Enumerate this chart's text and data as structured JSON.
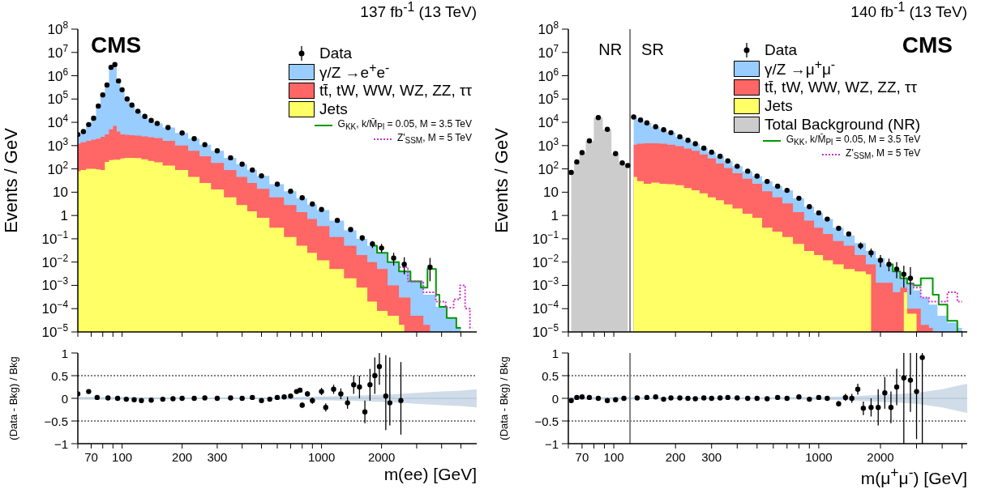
{
  "chart_data": [
    {
      "type": "area",
      "title": "137 fb$^{-1}$ (13 TeV)",
      "ylabel": "Events / GeV",
      "annotations": [
        "CMS"
      ],
      "log": "xy",
      "legend": "top right",
      "tick_labels": "y",
      "xlim": [
        60,
        6000
      ],
      "ylim": [
        1e-05,
        100000000
      ],
      "xticks": [
        {
          "value": 60,
          "label": null
        },
        70,
        {
          "value": 80,
          "label": null
        },
        {
          "value": 90,
          "label": null
        },
        100,
        200,
        300,
        {
          "value": 400,
          "label": null
        },
        {
          "value": 500,
          "label": null
        },
        {
          "value": 600,
          "label": null
        },
        {
          "value": 700,
          "label": null
        },
        {
          "value": 800,
          "label": null
        },
        {
          "value": 900,
          "label": null
        },
        1000,
        2000,
        {
          "value": 3000,
          "label": null
        },
        {
          "value": 4000,
          "label": null
        },
        {
          "value": 5000,
          "label": null
        }
      ],
      "yticks": [
        {
          "value": 1e-05,
          "label": "10$^{−5}$"
        },
        {
          "value": 0.0001,
          "label": "10$^{−4}$"
        },
        {
          "value": 0.001,
          "label": "10$^{−3}$"
        },
        {
          "value": 0.01,
          "label": "10$^{−2}$"
        },
        {
          "value": 0.1,
          "label": "10$^{−1}$"
        },
        1,
        10,
        {
          "value": 100,
          "label": "10$^{2}$"
        },
        {
          "value": 1000,
          "label": "10$^{3}$"
        },
        {
          "value": 10000,
          "label": "10$^{4}$"
        },
        {
          "value": 100000,
          "label": "10$^{5}$"
        },
        {
          "value": 1000000,
          "label": "10$^{6}$"
        },
        {
          "value": 10000000,
          "label": "10$^{7}$"
        },
        {
          "value": 100000000,
          "label": "10$^{8}$"
        }
      ],
      "series": [
        {
          "type": "scatter",
          "name": "Data",
          "color": "#000000",
          "marker": "circle",
          "x": [
            60,
            64,
            68,
            72,
            76,
            80,
            84,
            88,
            92,
            96,
            100,
            106,
            112,
            120,
            130,
            140,
            150,
            170,
            200,
            230,
            260,
            300,
            350,
            400,
            450,
            500,
            600,
            700,
            800,
            900,
            1000,
            1200,
            1400,
            1600,
            1800,
            2000,
            2300,
            2600,
            3000,
            3500
          ],
          "values": [
            3000,
            4000,
            8000,
            15000,
            50000,
            150000,
            400000,
            2300000,
            3000000,
            600000,
            250000,
            100000,
            55000,
            30000,
            18000,
            12000,
            9000,
            6000,
            3500,
            2000,
            1100,
            600,
            300,
            160,
            90,
            50,
            22,
            11,
            5.8,
            3.1,
            1.8,
            0.62,
            0.25,
            0.11,
            0.06,
            0.04,
            0.015,
            0.008,
            null,
            0.006
          ],
          "errors": [
            null,
            null,
            null,
            null,
            null,
            null,
            null,
            null,
            null,
            null,
            null,
            null,
            null,
            null,
            null,
            null,
            null,
            null,
            null,
            null,
            null,
            null,
            null,
            null,
            null,
            null,
            null,
            null,
            null,
            null,
            null,
            null,
            [
              0.2,
              0.3
            ],
            [
              0.08,
              0.14
            ],
            [
              0.04,
              0.08
            ],
            [
              0.025,
              0.06
            ],
            [
              0.007,
              0.025
            ],
            [
              0.003,
              0.016
            ],
            null,
            [
              0.0015,
              0.015
            ]
          ]
        },
        {
          "name": "γ/Z →e$^{+}$e$^{-}$",
          "color": "#99ccff",
          "x": [
            60,
            64,
            68,
            72,
            76,
            80,
            84,
            88,
            92,
            96,
            100,
            106,
            112,
            120,
            130,
            140,
            150,
            170,
            200,
            230,
            260,
            300,
            350,
            400,
            450,
            500,
            600,
            700,
            800,
            900,
            1000,
            1200,
            1400,
            1600,
            1800,
            2000,
            2300,
            2600,
            3000,
            3500,
            4000,
            4500,
            5000
          ],
          "values": [
            3000,
            4000,
            8000,
            15000,
            50000,
            150000,
            400000,
            2300000,
            3000000,
            600000,
            250000,
            100000,
            55000,
            30000,
            18000,
            12000,
            9000,
            6000,
            3500,
            2000,
            1100,
            600,
            300,
            160,
            90,
            50,
            22,
            11,
            5.5,
            3,
            1.7,
            0.6,
            0.23,
            0.1,
            0.05,
            0.025,
            0.01,
            0.004,
            0.0015,
            0.0004,
            0.00012,
            4e-05,
            1.5e-05
          ]
        },
        {
          "name": "tt̄, tW, WW, WZ, ZZ, ττ",
          "color": "#ff6666",
          "x": [
            60,
            64,
            68,
            72,
            76,
            80,
            84,
            88,
            92,
            96,
            100,
            106,
            112,
            120,
            130,
            140,
            150,
            170,
            200,
            230,
            260,
            300,
            350,
            400,
            450,
            500,
            600,
            700,
            800,
            900,
            1000,
            1200,
            1400,
            1600,
            1800,
            2000,
            2300,
            2600,
            3000,
            3500
          ],
          "values": [
            1200,
            1400,
            1600,
            1800,
            2000,
            2400,
            3000,
            5000,
            7000,
            4000,
            3000,
            2900,
            2800,
            2700,
            2500,
            2300,
            2100,
            1600,
            1000,
            600,
            350,
            180,
            90,
            45,
            25,
            14,
            6,
            2.8,
            1.4,
            0.7,
            0.35,
            0.12,
            0.05,
            0.02,
            0.01,
            0.005,
            0.001,
            0.0003,
            5e-05,
            2e-05
          ]
        },
        {
          "name": "Jets",
          "color": "#ffff66",
          "x": [
            60,
            64,
            68,
            72,
            76,
            80,
            84,
            88,
            92,
            96,
            100,
            106,
            112,
            120,
            130,
            140,
            150,
            170,
            200,
            230,
            260,
            300,
            350,
            400,
            450,
            500,
            600,
            700,
            800,
            900,
            1000,
            1200,
            1400,
            1600,
            1800,
            2000,
            2300,
            2600
          ],
          "values": [
            80,
            90,
            100,
            100,
            95,
            90,
            200,
            240,
            250,
            250,
            280,
            300,
            300,
            290,
            260,
            220,
            190,
            140,
            90,
            45,
            25,
            13,
            6,
            2.8,
            1.5,
            0.8,
            0.3,
            0.12,
            0.05,
            0.025,
            0.012,
            0.005,
            0.002,
            0.0008,
            0.0002,
            8e-05,
            5e-05,
            2e-05
          ]
        },
        {
          "type": "step",
          "name": "G$_{KK}$, k/M̄$_{Pl}$ = 0.05, M = 3.5 TeV",
          "color": "#009900",
          "line_style": "solid",
          "x": [
            1800,
            2000,
            2300,
            2600,
            3000,
            3300,
            3500,
            3700,
            3800,
            4000,
            4500,
            5000
          ],
          "values": [
            0.05,
            0.025,
            0.01,
            0.004,
            0.0015,
            0.0008,
            0.005,
            0.005,
            0.0004,
            0.00012,
            4e-05,
            1.5e-05
          ]
        },
        {
          "type": "step",
          "name": "Z'$_{SSM}$, M = 5 TeV",
          "color": "#cc33cc",
          "line_style": "dotted",
          "x": [
            2450,
            3000,
            3500,
            4000,
            4400,
            4800,
            5100,
            5400,
            5700
          ],
          "values": [
            0.006,
            0.0015,
            0.0005,
            0.0002,
            0.00011,
            0.00025,
            0.001,
            0.0001,
            1.5e-05
          ]
        }
      ]
    },
    {
      "type": "scatter",
      "xlabel": "m(ee) [GeV]",
      "ylabel": "(Data - Bkg) / Bkg",
      "log": "x",
      "xlim": [
        60,
        6000
      ],
      "ylim": [
        -1,
        1
      ],
      "xticks": [
        {
          "value": 60,
          "label": null
        },
        70,
        {
          "value": 80,
          "label": null
        },
        {
          "value": 90,
          "label": null
        },
        100,
        200,
        300,
        {
          "value": 400,
          "label": null
        },
        {
          "value": 500,
          "label": null
        },
        {
          "value": 600,
          "label": null
        },
        {
          "value": 700,
          "label": null
        },
        {
          "value": 800,
          "label": null
        },
        {
          "value": 900,
          "label": null
        },
        1000,
        2000,
        {
          "value": 3000,
          "label": null
        },
        {
          "value": 4000,
          "label": null
        },
        {
          "value": 5000,
          "label": null
        }
      ],
      "yticks": [
        {
          "value": -1,
          "label": "−1"
        },
        {
          "value": -0.5,
          "label": "−0.5"
        },
        0,
        0.5,
        1
      ],
      "ref_lines": [
        {
          "axis": "y",
          "value": 0.5,
          "line_style": "dotted",
          "color": "#000000"
        },
        {
          "axis": "y",
          "value": -0.5,
          "line_style": "dotted",
          "color": "#000000"
        }
      ],
      "series": [
        {
          "type": "line",
          "color": "#a9c1d6",
          "x": [
            60,
            200,
            500,
            1000,
            1500,
            2000,
            2500,
            3000,
            4000,
            5000,
            6000
          ],
          "values": [
            0,
            0,
            0,
            0,
            0,
            0,
            0,
            0,
            0,
            0,
            0
          ],
          "lower": [
            -0.03,
            -0.02,
            -0.02,
            -0.04,
            -0.06,
            -0.08,
            -0.1,
            -0.12,
            -0.15,
            -0.17,
            -0.2
          ],
          "upper": [
            0.03,
            0.02,
            0.02,
            0.04,
            0.06,
            0.08,
            0.1,
            0.12,
            0.15,
            0.17,
            0.2
          ]
        },
        {
          "color": "#000000",
          "marker": "circle",
          "x": [
            60,
            68,
            75,
            85,
            95,
            105,
            115,
            125,
            140,
            160,
            180,
            200,
            230,
            260,
            300,
            350,
            400,
            450,
            500,
            550,
            600,
            650,
            700,
            750,
            780,
            800,
            850,
            900,
            1000,
            1050,
            1150,
            1250,
            1350,
            1450,
            1550,
            1650,
            1750,
            1850,
            1950,
            2100,
            2200,
            2500
          ],
          "values": [
            0.1,
            0.15,
            0.02,
            0.01,
            0,
            -0.02,
            -0.03,
            -0.05,
            -0.04,
            -0.02,
            -0.01,
            0,
            0,
            0.01,
            0,
            0.01,
            0,
            0.02,
            -0.05,
            -0.02,
            0.02,
            0.03,
            0.05,
            0.15,
            0.18,
            -0.15,
            0.1,
            -0.05,
            0.15,
            -0.2,
            0.2,
            0.1,
            -0.1,
            0.3,
            0.25,
            -0.3,
            0.3,
            0.5,
            0.7,
            0.05,
            -0.1,
            -0.05
          ],
          "errors": [
            null,
            null,
            null,
            null,
            null,
            null,
            null,
            null,
            null,
            null,
            null,
            null,
            null,
            null,
            null,
            null,
            null,
            null,
            null,
            null,
            null,
            null,
            null,
            0.04,
            0.05,
            0.06,
            0.06,
            0.07,
            0.08,
            0.09,
            0.1,
            0.12,
            0.13,
            0.2,
            0.25,
            0.25,
            0.35,
            0.4,
            [
              0.3,
              1
            ],
            [
              -0.7,
              0.95
            ],
            [
              -0.6,
              0.9
            ],
            [
              -0.8,
              0.8
            ]
          ]
        }
      ]
    },
    {
      "type": "area",
      "title": "140 fb$^{-1}$ (13 TeV)",
      "ylabel": "Events / GeV",
      "annotations": [
        "CMS",
        "NR",
        "SR"
      ],
      "log": "xy",
      "legend": "top",
      "tick_labels": "y",
      "xlim": [
        60,
        5300
      ],
      "ylim": [
        1e-05,
        100000000
      ],
      "xticks": [
        {
          "value": 60,
          "label": null
        },
        70,
        {
          "value": 80,
          "label": null
        },
        {
          "value": 90,
          "label": null
        },
        100,
        200,
        300,
        {
          "value": 400,
          "label": null
        },
        {
          "value": 500,
          "label": null
        },
        {
          "value": 600,
          "label": null
        },
        {
          "value": 700,
          "label": null
        },
        {
          "value": 800,
          "label": null
        },
        {
          "value": 900,
          "label": null
        },
        1000,
        2000,
        {
          "value": 3000,
          "label": null
        },
        {
          "value": 4000,
          "label": null
        },
        {
          "value": 5000,
          "label": null
        }
      ],
      "yticks": [
        {
          "value": 1e-05,
          "label": "10$^{−5}$"
        },
        {
          "value": 0.0001,
          "label": "10$^{−4}$"
        },
        {
          "value": 0.001,
          "label": "10$^{−3}$"
        },
        {
          "value": 0.01,
          "label": "10$^{−2}$"
        },
        {
          "value": 0.1,
          "label": "10$^{−1}$"
        },
        1,
        10,
        {
          "value": 100,
          "label": "10$^{2}$"
        },
        {
          "value": 1000,
          "label": "10$^{3}$"
        },
        {
          "value": 10000,
          "label": "10$^{4}$"
        },
        {
          "value": 100000,
          "label": "10$^{5}$"
        },
        {
          "value": 1000000,
          "label": "10$^{6}$"
        },
        {
          "value": 10000000,
          "label": "10$^{7}$"
        },
        {
          "value": 100000000,
          "label": "10$^{8}$"
        }
      ],
      "ref_lines": [
        {
          "axis": "x",
          "value": 120,
          "color": "#808080"
        }
      ],
      "series": [
        {
          "type": "scatter",
          "name": "Data",
          "color": "#000000",
          "marker": "circle",
          "x": [
            62,
            66,
            70,
            76,
            84,
            93,
            102,
            110,
            117,
            125,
            135,
            145,
            160,
            175,
            190,
            210,
            230,
            250,
            275,
            300,
            330,
            360,
            400,
            450,
            500,
            560,
            630,
            700,
            800,
            900,
            1000,
            1100,
            1250,
            1400,
            1600,
            1800,
            2000,
            2200,
            2400,
            2600,
            2800
          ],
          "values": [
            70,
            200,
            500,
            1600,
            16000,
            5000,
            450,
            180,
            140,
            17000,
            12500,
            9500,
            6500,
            4800,
            3600,
            2400,
            1700,
            1200,
            780,
            520,
            350,
            220,
            130,
            80,
            49,
            29,
            18,
            12,
            5.5,
            2.4,
            1.3,
            0.7,
            0.28,
            0.16,
            0.05,
            0.025,
            0.012,
            0.008,
            0.005,
            0.003,
            0.002
          ],
          "errors": [
            null,
            null,
            null,
            null,
            null,
            null,
            null,
            null,
            null,
            null,
            null,
            null,
            null,
            null,
            null,
            null,
            null,
            null,
            null,
            null,
            null,
            null,
            null,
            null,
            null,
            null,
            null,
            null,
            null,
            null,
            null,
            null,
            null,
            null,
            [
              0.035,
              0.07
            ],
            [
              0.016,
              0.038
            ],
            [
              0.006,
              0.02
            ],
            [
              0.004,
              0.014
            ],
            [
              0.002,
              0.01
            ],
            [
              0.0008,
              0.007
            ],
            [
              0.0004,
              0.006
            ]
          ]
        },
        {
          "name": "γ/Z →μ$^{+}$μ$^{-}$",
          "color": "#99ccff",
          "x": [
            125,
            135,
            145,
            160,
            175,
            190,
            210,
            230,
            250,
            275,
            300,
            330,
            360,
            400,
            450,
            500,
            560,
            630,
            700,
            800,
            900,
            1000,
            1100,
            1250,
            1400,
            1600,
            1800,
            2000,
            2200,
            2400,
            2600,
            2800,
            3000,
            3300,
            3600,
            4000,
            4500,
            5000
          ],
          "values": [
            17000,
            12500,
            9500,
            6500,
            4800,
            3600,
            2400,
            1700,
            1200,
            780,
            520,
            350,
            220,
            130,
            80,
            49,
            29,
            18,
            12,
            5.5,
            2.4,
            1.3,
            0.7,
            0.3,
            0.14,
            0.065,
            0.03,
            0.015,
            0.008,
            0.004,
            0.002,
            0.0012,
            0.0006,
            0.0003,
            0.00015,
            5e-05,
            2.5e-05,
            1.5e-05
          ]
        },
        {
          "name": "tt̄, tW, WW, WZ, ZZ, ττ",
          "color": "#ff6666",
          "x": [
            125,
            135,
            145,
            160,
            175,
            190,
            210,
            230,
            250,
            275,
            300,
            330,
            360,
            400,
            450,
            500,
            560,
            630,
            700,
            800,
            900,
            1000,
            1100,
            1250,
            1400,
            1600,
            1800,
            2000,
            2200,
            2400,
            2600,
            2800,
            3000,
            3300,
            3600
          ],
          "values": [
            1100,
            1200,
            1250,
            1250,
            1200,
            1100,
            950,
            750,
            600,
            420,
            280,
            170,
            110,
            65,
            38,
            23,
            11,
            6,
            3.3,
            1.4,
            0.6,
            0.3,
            0.16,
            0.08,
            0.05,
            0.02,
            0.008,
            0.0013,
            0.0013,
            0.0005,
            0.0008,
            0.0001,
            0.0001,
            2e-05,
            1.5e-05
          ]
        },
        {
          "name": "Jets",
          "color": "#ffff66",
          "x": [
            125,
            135,
            145,
            160,
            175,
            190,
            210,
            230,
            250,
            275,
            300,
            330,
            360,
            400,
            450,
            500,
            560,
            630,
            700,
            800,
            900,
            1000,
            1100,
            1250,
            1400,
            1600,
            1800,
            2000,
            2200,
            2400,
            2600,
            2800,
            3000
          ],
          "values": [
            45,
            30,
            23,
            26,
            23,
            22,
            20,
            15,
            12,
            9,
            6,
            4.5,
            3,
            2,
            1.2,
            0.8,
            0.3,
            0.2,
            0.12,
            0.06,
            0.03,
            0.02,
            0.012,
            0.008,
            0.005,
            0.004,
            0.003,
            null,
            null,
            null,
            0.0005,
            6e-05,
            6e-05
          ]
        },
        {
          "name": "Total Background (NR)",
          "color": "#cccccc",
          "x": [
            62,
            66,
            70,
            76,
            84,
            93,
            102,
            110,
            117
          ],
          "values": [
            70,
            200,
            500,
            1600,
            16000,
            5000,
            450,
            180,
            140
          ]
        },
        {
          "type": "step",
          "name": "G$_{KK}$, k/M̄$_{Pl}$ = 0.05, M = 3.5 TeV",
          "color": "#009900",
          "line_style": "solid",
          "x": [
            2200,
            2400,
            2600,
            2800,
            3000,
            3300,
            3500,
            3700,
            4000,
            4500,
            5000
          ],
          "values": [
            0.008,
            0.004,
            0.002,
            0.0012,
            0.001,
            0.002,
            0.002,
            0.0004,
            0.00015,
            3e-05,
            1e-05
          ]
        },
        {
          "type": "step",
          "name": "Z'$_{SSM}$, M = 5 TeV",
          "color": "#cc33cc",
          "line_style": "dotted",
          "x": [
            2800,
            3000,
            3300,
            3600,
            4000,
            4500,
            5000
          ],
          "values": [
            0.0012,
            0.0008,
            0.0003,
            0.0002,
            0.0002,
            0.0005,
            0.0002
          ]
        }
      ]
    },
    {
      "type": "scatter",
      "xlabel": "m(μ$^{+}$μ$^{-}$) [GeV]",
      "ylabel": "(Data - Bkg) / Bkg",
      "log": "x",
      "xlim": [
        60,
        5300
      ],
      "ylim": [
        -1,
        1
      ],
      "xticks": [
        {
          "value": 60,
          "label": null
        },
        70,
        {
          "value": 80,
          "label": null
        },
        {
          "value": 90,
          "label": null
        },
        100,
        200,
        300,
        {
          "value": 400,
          "label": null
        },
        {
          "value": 500,
          "label": null
        },
        {
          "value": 600,
          "label": null
        },
        {
          "value": 700,
          "label": null
        },
        {
          "value": 800,
          "label": null
        },
        {
          "value": 900,
          "label": null
        },
        1000,
        2000,
        {
          "value": 3000,
          "label": null
        },
        {
          "value": 4000,
          "label": null
        },
        {
          "value": 5000,
          "label": null
        }
      ],
      "yticks": [
        {
          "value": -1,
          "label": "−1"
        },
        {
          "value": -0.5,
          "label": "−0.5"
        },
        0,
        0.5,
        1
      ],
      "ref_lines": [
        {
          "axis": "y",
          "value": 0.5,
          "line_style": "dotted",
          "color": "#000000"
        },
        {
          "axis": "y",
          "value": -0.5,
          "line_style": "dotted",
          "color": "#000000"
        },
        {
          "axis": "x",
          "value": 120,
          "color": "#808080"
        }
      ],
      "series": [
        {
          "type": "line",
          "color": "#a9c1d6",
          "x": [
            60,
            200,
            500,
            1000,
            1500,
            2000,
            2500,
            3000,
            4000,
            5000,
            5300
          ],
          "values": [
            0,
            0,
            0,
            0,
            0,
            0,
            0,
            0,
            0,
            0,
            0
          ],
          "lower": [
            -0.03,
            -0.02,
            -0.02,
            -0.03,
            -0.05,
            -0.08,
            -0.1,
            -0.12,
            -0.2,
            -0.3,
            -0.32
          ],
          "upper": [
            0.03,
            0.02,
            0.02,
            0.03,
            0.05,
            0.08,
            0.1,
            0.12,
            0.2,
            0.3,
            0.32
          ]
        },
        {
          "color": "#000000",
          "marker": "circle",
          "x": [
            62,
            66,
            70,
            76,
            84,
            93,
            102,
            112,
            130,
            145,
            160,
            175,
            190,
            210,
            230,
            250,
            275,
            300,
            330,
            360,
            400,
            450,
            500,
            560,
            630,
            700,
            800,
            900,
            1000,
            1100,
            1250,
            1350,
            1450,
            1550,
            1650,
            1800,
            1950,
            2100,
            2250,
            2400,
            2600,
            2800,
            3000,
            3200
          ],
          "values": [
            -0.05,
            0.02,
            0.03,
            0.02,
            0,
            -0.05,
            -0.03,
            0,
            0.01,
            0.02,
            0.03,
            -0.02,
            0.01,
            0.01,
            0,
            -0.01,
            0.01,
            0,
            0.01,
            0.02,
            0.01,
            0,
            0,
            -0.01,
            0.02,
            0,
            0.03,
            -0.02,
            0.02,
            0,
            -0.12,
            0.02,
            0,
            0.2,
            -0.22,
            -0.2,
            -0.2,
            0.12,
            -0.2,
            0.25,
            0.45,
            0.4,
            0.15,
            0.9
          ],
          "errors": [
            null,
            null,
            null,
            null,
            null,
            null,
            null,
            null,
            null,
            null,
            null,
            null,
            null,
            null,
            null,
            null,
            null,
            null,
            null,
            null,
            null,
            null,
            null,
            null,
            null,
            null,
            null,
            null,
            null,
            null,
            0.06,
            0.08,
            0.1,
            0.12,
            0.15,
            0.2,
            0.4,
            0.35,
            0.35,
            0.4,
            [
              -1,
              1
            ],
            [
              -0.3,
              1
            ],
            [
              -0.9,
              1
            ],
            [
              -1,
              1
            ]
          ]
        }
      ]
    }
  ]
}
